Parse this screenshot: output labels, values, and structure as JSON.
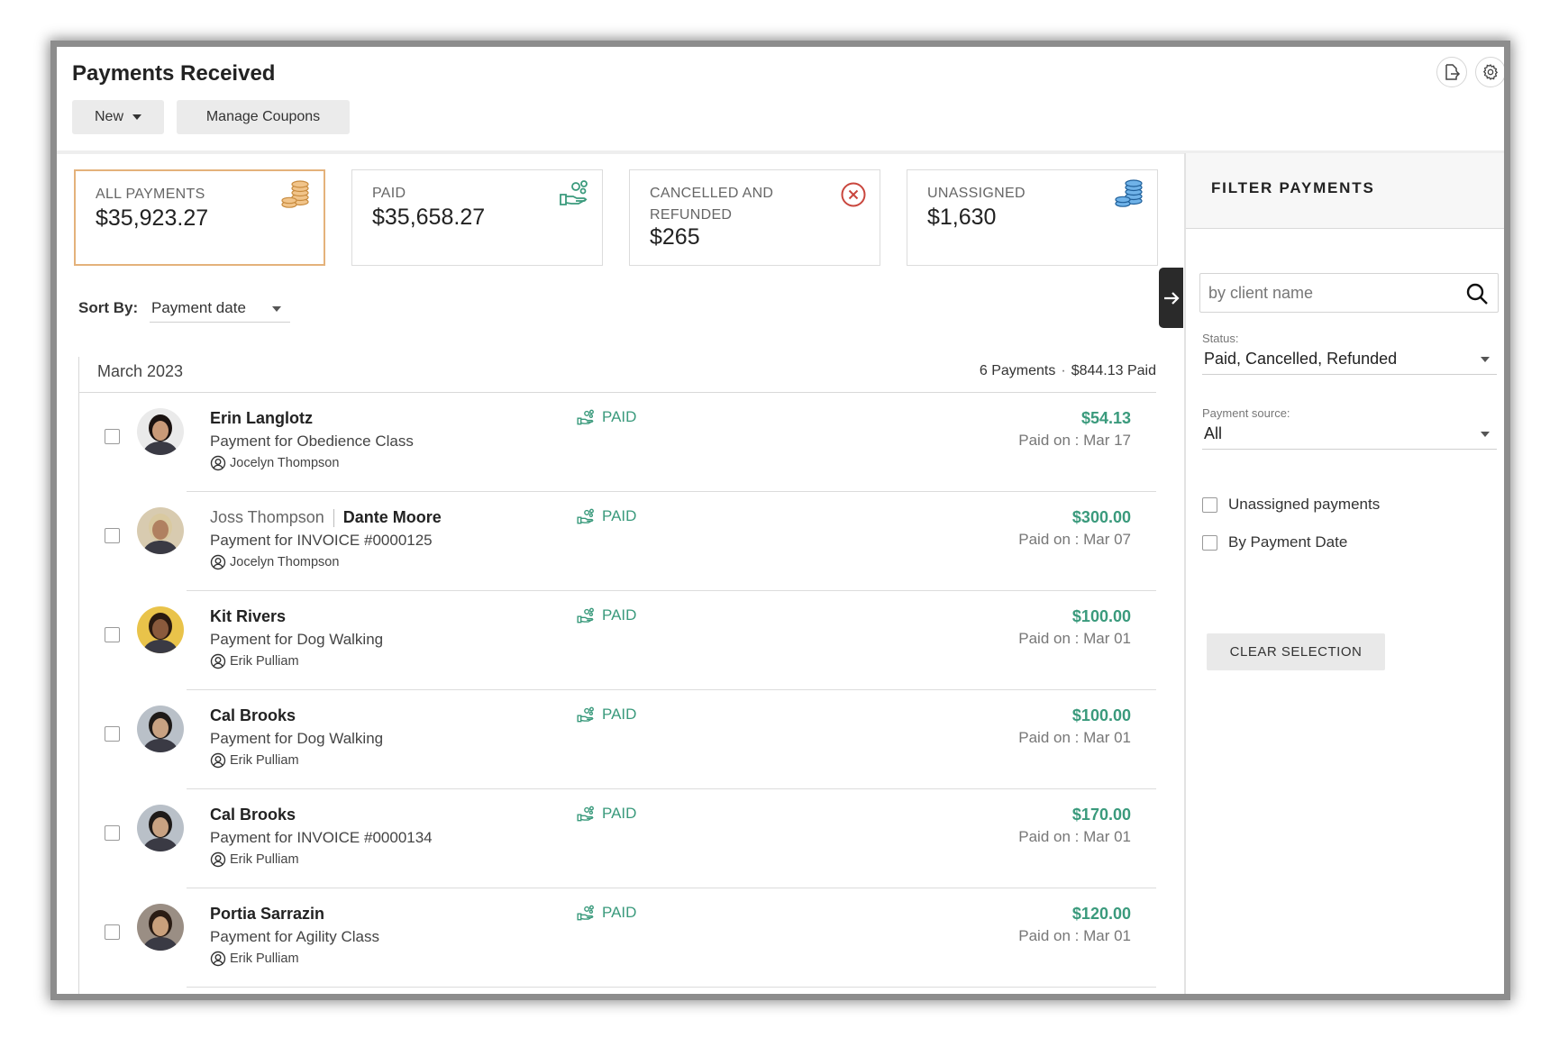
{
  "header": {
    "title": "Payments Received",
    "new_label": "New",
    "coupons_label": "Manage Coupons",
    "icons": [
      "export-icon",
      "gear-icon"
    ]
  },
  "cards": [
    {
      "label": "ALL PAYMENTS",
      "value": "$35,923.27",
      "icon": "coins-stack-icon",
      "active": true
    },
    {
      "label": "PAID",
      "value": "$35,658.27",
      "icon": "hand-money-icon"
    },
    {
      "label": "CANCELLED AND REFUNDED",
      "value": "$265",
      "icon": "cancel-circle-icon"
    },
    {
      "label": "UNASSIGNED",
      "value": "$1,630",
      "icon": "coins-blue-icon"
    }
  ],
  "sort": {
    "label": "Sort By:",
    "value": "Payment date"
  },
  "month": {
    "title": "March 2023",
    "count": "6 Payments",
    "dot": "·",
    "total": "$844.13 Paid"
  },
  "payments": [
    {
      "name": "Erin Langlotz",
      "description": "Payment for Obedience Class",
      "staff": "Jocelyn Thompson",
      "status": "PAID",
      "amount": "$54.13",
      "paid_on": "Paid on : Mar 17"
    },
    {
      "name_secondary": "Joss Thompson",
      "name": "Dante Moore",
      "description": "Payment for INVOICE #0000125",
      "staff": "Jocelyn Thompson",
      "status": "PAID",
      "amount": "$300.00",
      "paid_on": "Paid on : Mar 07"
    },
    {
      "name": "Kit Rivers",
      "description": "Payment for Dog Walking",
      "staff": "Erik Pulliam",
      "status": "PAID",
      "amount": "$100.00",
      "paid_on": "Paid on : Mar 01"
    },
    {
      "name": "Cal Brooks",
      "description": "Payment for Dog Walking",
      "staff": "Erik Pulliam",
      "status": "PAID",
      "amount": "$100.00",
      "paid_on": "Paid on : Mar 01"
    },
    {
      "name": "Cal Brooks",
      "description": "Payment for INVOICE #0000134",
      "staff": "Erik Pulliam",
      "status": "PAID",
      "amount": "$170.00",
      "paid_on": "Paid on : Mar 01"
    },
    {
      "name": "Portia Sarrazin",
      "description": "Payment for Agility Class",
      "staff": "Erik Pulliam",
      "status": "PAID",
      "amount": "$120.00",
      "paid_on": "Paid on : Mar 01"
    }
  ],
  "filter": {
    "title": "FILTER PAYMENTS",
    "search_placeholder": "by client name",
    "status_label": "Status:",
    "status_value": "Paid, Cancelled, Refunded",
    "source_label": "Payment source:",
    "source_value": "All",
    "check_unassigned": "Unassigned payments",
    "check_by_date": "By Payment Date",
    "clear_label": "CLEAR SELECTION"
  },
  "colors": {
    "accent_green": "#3a9a7c",
    "active_border": "#e4b27b",
    "cancel_red": "#c9463d",
    "coin_blue": "#2f78b8",
    "coin_gold": "#d9a35a"
  }
}
